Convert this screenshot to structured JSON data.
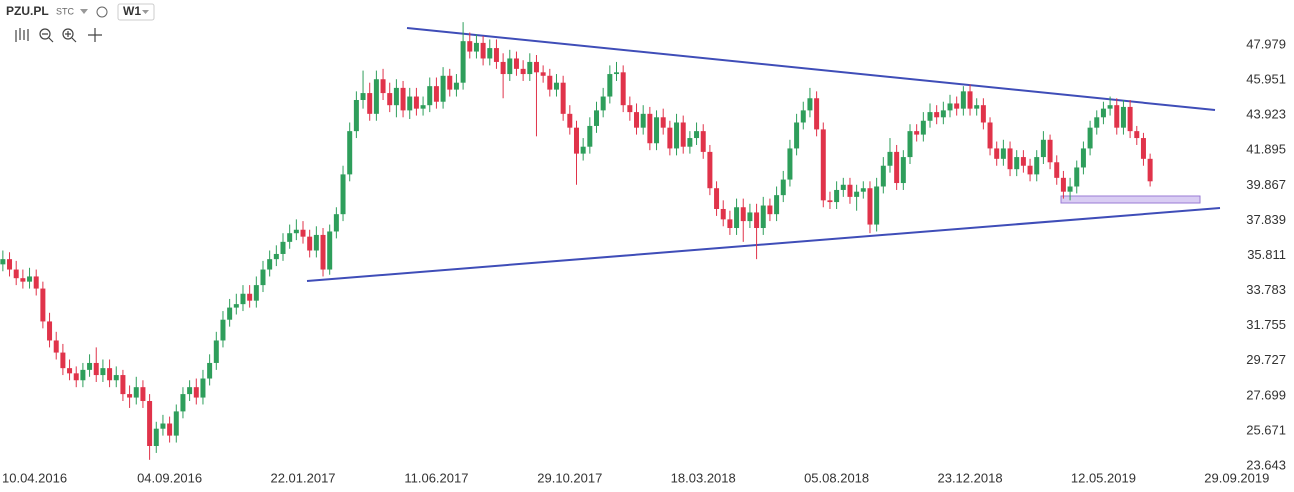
{
  "header": {
    "symbol": "PZU.PL",
    "exchange": "STC",
    "interval": "W1"
  },
  "chart_data": {
    "type": "candlestick",
    "up_color": "#2e9e5b",
    "down_color": "#e0334a",
    "xlim": [
      "2016-03-10",
      "2019-11-28"
    ],
    "ylim": [
      22.95,
      50.58
    ],
    "yticks": [
      23.643,
      25.671,
      27.699,
      29.727,
      31.755,
      33.783,
      35.811,
      37.839,
      39.867,
      41.895,
      43.923,
      45.951,
      47.979
    ],
    "xticks": [
      {
        "value": "2016-04-10",
        "label": "10.04.2016"
      },
      {
        "value": "2016-09-04",
        "label": "04.09.2016"
      },
      {
        "value": "2017-01-22",
        "label": "22.01.2017"
      },
      {
        "value": "2017-06-11",
        "label": "11.06.2017"
      },
      {
        "value": "2017-10-29",
        "label": "29.10.2017"
      },
      {
        "value": "2018-03-18",
        "label": "18.03.2018"
      },
      {
        "value": "2018-08-05",
        "label": "05.08.2018"
      },
      {
        "value": "2018-12-23",
        "label": "23.12.2018"
      },
      {
        "value": "2019-05-12",
        "label": "12.05.2019"
      },
      {
        "value": "2019-09-29",
        "label": "29.09.2019"
      }
    ],
    "x": [
      "2016-03-13",
      "2016-03-20",
      "2016-03-27",
      "2016-04-03",
      "2016-04-10",
      "2016-04-17",
      "2016-04-24",
      "2016-05-01",
      "2016-05-08",
      "2016-05-15",
      "2016-05-22",
      "2016-05-29",
      "2016-06-05",
      "2016-06-12",
      "2016-06-19",
      "2016-06-26",
      "2016-07-03",
      "2016-07-10",
      "2016-07-17",
      "2016-07-24",
      "2016-07-31",
      "2016-08-07",
      "2016-08-14",
      "2016-08-21",
      "2016-08-28",
      "2016-09-04",
      "2016-09-11",
      "2016-09-18",
      "2016-09-25",
      "2016-10-02",
      "2016-10-09",
      "2016-10-16",
      "2016-10-23",
      "2016-10-30",
      "2016-11-06",
      "2016-11-13",
      "2016-11-20",
      "2016-11-27",
      "2016-12-04",
      "2016-12-11",
      "2016-12-18",
      "2016-12-25",
      "2017-01-01",
      "2017-01-08",
      "2017-01-15",
      "2017-01-22",
      "2017-01-29",
      "2017-02-05",
      "2017-02-12",
      "2017-02-19",
      "2017-02-26",
      "2017-03-05",
      "2017-03-12",
      "2017-03-19",
      "2017-03-26",
      "2017-04-02",
      "2017-04-09",
      "2017-04-16",
      "2017-04-23",
      "2017-04-30",
      "2017-05-07",
      "2017-05-14",
      "2017-05-21",
      "2017-05-28",
      "2017-06-04",
      "2017-06-11",
      "2017-06-18",
      "2017-06-25",
      "2017-07-02",
      "2017-07-09",
      "2017-07-16",
      "2017-07-23",
      "2017-07-30",
      "2017-08-06",
      "2017-08-13",
      "2017-08-20",
      "2017-08-27",
      "2017-09-03",
      "2017-09-10",
      "2017-09-17",
      "2017-09-24",
      "2017-10-01",
      "2017-10-08",
      "2017-10-15",
      "2017-10-22",
      "2017-10-29",
      "2017-11-05",
      "2017-11-12",
      "2017-11-19",
      "2017-11-26",
      "2017-12-03",
      "2017-12-10",
      "2017-12-17",
      "2017-12-24",
      "2017-12-31",
      "2018-01-07",
      "2018-01-14",
      "2018-01-21",
      "2018-01-28",
      "2018-02-04",
      "2018-02-11",
      "2018-02-18",
      "2018-02-25",
      "2018-03-04",
      "2018-03-11",
      "2018-03-18",
      "2018-03-25",
      "2018-04-01",
      "2018-04-08",
      "2018-04-15",
      "2018-04-22",
      "2018-04-29",
      "2018-05-06",
      "2018-05-13",
      "2018-05-20",
      "2018-05-27",
      "2018-06-03",
      "2018-06-10",
      "2018-06-17",
      "2018-06-24",
      "2018-07-01",
      "2018-07-08",
      "2018-07-15",
      "2018-07-22",
      "2018-07-29",
      "2018-08-05",
      "2018-08-12",
      "2018-08-19",
      "2018-08-26",
      "2018-09-02",
      "2018-09-09",
      "2018-09-16",
      "2018-09-23",
      "2018-09-30",
      "2018-10-07",
      "2018-10-14",
      "2018-10-21",
      "2018-10-28",
      "2018-11-04",
      "2018-11-11",
      "2018-11-18",
      "2018-11-25",
      "2018-12-02",
      "2018-12-09",
      "2018-12-16",
      "2018-12-23",
      "2018-12-30",
      "2019-01-06",
      "2019-01-13",
      "2019-01-20",
      "2019-01-27",
      "2019-02-03",
      "2019-02-10",
      "2019-02-17",
      "2019-02-24",
      "2019-03-03",
      "2019-03-10",
      "2019-03-17",
      "2019-03-24",
      "2019-03-31",
      "2019-04-07",
      "2019-04-14",
      "2019-04-21",
      "2019-04-28",
      "2019-05-05",
      "2019-05-12",
      "2019-05-19",
      "2019-05-26",
      "2019-06-02",
      "2019-06-09",
      "2019-06-16",
      "2019-06-23",
      "2019-06-30"
    ],
    "open": [
      35.3,
      35.6,
      35.0,
      34.5,
      34.3,
      34.6,
      33.9,
      32.0,
      30.9,
      30.2,
      29.3,
      29.0,
      28.6,
      29.2,
      29.6,
      28.9,
      29.3,
      28.6,
      28.9,
      27.8,
      27.6,
      28.2,
      27.4,
      24.8,
      25.8,
      26.1,
      25.4,
      26.8,
      27.8,
      28.2,
      27.6,
      28.7,
      29.6,
      30.9,
      32.1,
      32.8,
      33.0,
      33.6,
      33.2,
      34.1,
      35.0,
      35.6,
      35.9,
      36.6,
      37.1,
      37.3,
      36.9,
      36.1,
      37.0,
      35.0,
      37.2,
      38.2,
      40.5,
      43.0,
      44.8,
      45.2,
      44.0,
      46.0,
      45.2,
      44.5,
      45.5,
      44.2,
      45.0,
      44.3,
      44.5,
      45.6,
      44.7,
      46.2,
      45.4,
      45.8,
      48.2,
      47.6,
      48.1,
      47.2,
      47.8,
      47.0,
      46.3,
      47.2,
      46.6,
      46.3,
      47.0,
      46.4,
      46.2,
      45.4,
      45.8,
      44.0,
      43.2,
      41.7,
      42.1,
      43.3,
      44.2,
      45.0,
      46.3,
      46.4,
      44.5,
      44.1,
      43.2,
      44.0,
      42.3,
      43.8,
      43.2,
      42.0,
      43.5,
      42.1,
      42.6,
      43.0,
      41.8,
      39.7,
      38.5,
      37.9,
      37.4,
      38.6,
      37.8,
      38.3,
      37.4,
      38.7,
      38.2,
      39.3,
      40.2,
      42.0,
      43.5,
      44.2,
      44.9,
      43.1,
      39.0,
      38.9,
      39.6,
      39.9,
      39.2,
      39.5,
      39.7,
      37.6,
      39.8,
      41.0,
      41.8,
      40.0,
      41.5,
      43.0,
      42.8,
      43.6,
      44.1,
      43.8,
      44.2,
      44.6,
      44.3,
      45.3,
      44.3,
      44.5,
      43.5,
      42.0,
      41.4,
      42.0,
      40.8,
      41.5,
      41.0,
      40.5,
      41.5,
      42.5,
      41.2,
      40.3,
      39.5,
      39.8,
      40.9,
      42.0,
      43.2,
      43.8,
      44.3,
      44.5,
      43.2,
      44.4,
      43.0,
      42.6,
      41.4
    ],
    "high": [
      36.1,
      36.0,
      35.5,
      35.0,
      35.1,
      35.0,
      34.3,
      32.5,
      31.4,
      30.7,
      29.8,
      29.4,
      29.6,
      30.1,
      30.5,
      29.8,
      29.8,
      29.4,
      29.2,
      28.3,
      28.8,
      28.6,
      27.8,
      26.2,
      26.6,
      26.5,
      27.2,
      28.2,
      28.6,
      28.7,
      29.2,
      30.1,
      31.4,
      32.6,
      33.3,
      33.6,
      34.1,
      34.1,
      34.6,
      35.5,
      36.1,
      36.4,
      37.1,
      37.6,
      37.9,
      37.8,
      37.3,
      37.5,
      37.4,
      37.6,
      38.6,
      41.0,
      43.5,
      45.3,
      46.5,
      45.8,
      46.5,
      46.6,
      45.8,
      46.0,
      45.9,
      45.5,
      45.5,
      45.0,
      46.1,
      46.1,
      46.7,
      46.6,
      46.3,
      49.3,
      48.7,
      48.6,
      48.5,
      48.3,
      48.3,
      47.5,
      47.7,
      47.6,
      47.1,
      47.5,
      47.4,
      46.8,
      46.6,
      46.3,
      46.2,
      44.5,
      43.6,
      42.6,
      43.8,
      44.7,
      45.5,
      46.8,
      47.0,
      46.8,
      45.0,
      44.6,
      44.5,
      44.4,
      44.2,
      44.3,
      43.6,
      44.0,
      43.9,
      43.0,
      43.5,
      43.4,
      42.2,
      40.1,
      39.0,
      38.4,
      39.1,
      39.1,
      38.8,
      38.8,
      39.2,
      39.1,
      39.8,
      40.7,
      42.5,
      44.0,
      44.7,
      45.5,
      45.3,
      43.5,
      39.5,
      40.1,
      40.3,
      40.3,
      39.9,
      40.1,
      40.1,
      40.3,
      41.5,
      42.6,
      42.2,
      41.9,
      43.4,
      43.4,
      44.1,
      44.6,
      44.5,
      44.7,
      45.1,
      45.0,
      45.6,
      45.7,
      44.9,
      44.9,
      43.8,
      42.4,
      42.5,
      42.4,
      41.9,
      41.9,
      41.4,
      41.9,
      43.0,
      42.8,
      41.6,
      40.7,
      40.3,
      41.3,
      42.4,
      43.6,
      44.2,
      44.7,
      45.0,
      44.9,
      44.8,
      44.8,
      43.3,
      42.9,
      41.7
    ],
    "low": [
      34.9,
      34.6,
      34.1,
      33.9,
      33.9,
      33.5,
      31.6,
      30.5,
      29.8,
      28.9,
      28.6,
      28.2,
      28.2,
      28.8,
      28.5,
      28.5,
      28.2,
      28.2,
      27.4,
      27.0,
      27.2,
      27.0,
      24.0,
      24.4,
      25.4,
      25.0,
      25.0,
      26.4,
      27.4,
      27.2,
      27.2,
      28.3,
      29.2,
      30.5,
      31.7,
      32.4,
      32.6,
      32.8,
      32.8,
      33.7,
      34.6,
      35.2,
      35.5,
      36.2,
      36.7,
      36.5,
      35.7,
      35.7,
      34.6,
      34.7,
      36.8,
      37.8,
      40.1,
      42.6,
      44.3,
      43.6,
      43.6,
      44.8,
      44.1,
      43.8,
      43.8,
      43.7,
      43.9,
      43.9,
      44.1,
      44.3,
      44.3,
      45.0,
      45.0,
      45.4,
      47.2,
      47.2,
      46.8,
      46.8,
      46.6,
      44.9,
      45.9,
      46.2,
      45.9,
      45.9,
      42.7,
      45.8,
      45.0,
      45.0,
      43.6,
      42.8,
      39.9,
      41.3,
      41.7,
      42.9,
      43.8,
      44.6,
      45.9,
      44.1,
      43.6,
      42.8,
      42.8,
      41.9,
      41.9,
      42.8,
      41.6,
      41.6,
      41.7,
      41.7,
      42.2,
      41.4,
      39.3,
      38.1,
      37.5,
      37.0,
      37.0,
      36.6,
      37.4,
      35.6,
      37.0,
      37.8,
      37.8,
      38.9,
      39.8,
      41.6,
      43.1,
      43.8,
      42.7,
      38.6,
      38.5,
      38.5,
      39.2,
      38.8,
      38.4,
      39.1,
      37.1,
      37.2,
      39.4,
      40.6,
      39.6,
      39.6,
      41.1,
      42.4,
      42.4,
      43.2,
      43.4,
      43.4,
      43.8,
      43.9,
      43.9,
      43.9,
      43.9,
      43.1,
      41.6,
      41.0,
      41.0,
      40.4,
      40.4,
      40.6,
      40.1,
      40.1,
      41.1,
      40.8,
      39.9,
      39.1,
      39.0,
      39.4,
      40.5,
      41.6,
      42.8,
      43.4,
      43.9,
      42.8,
      42.8,
      42.6,
      42.2,
      41.0,
      39.8
    ],
    "close": [
      35.6,
      35.0,
      34.5,
      34.3,
      34.6,
      33.9,
      32.0,
      30.9,
      30.2,
      29.3,
      29.0,
      28.6,
      29.2,
      29.6,
      28.9,
      29.3,
      28.6,
      28.9,
      27.8,
      27.6,
      28.2,
      27.4,
      24.8,
      25.8,
      26.1,
      25.4,
      26.8,
      27.8,
      28.2,
      27.6,
      28.7,
      29.6,
      30.9,
      32.1,
      32.8,
      33.0,
      33.6,
      33.2,
      34.1,
      35.0,
      35.6,
      35.9,
      36.6,
      37.1,
      37.3,
      36.9,
      36.1,
      37.0,
      35.0,
      37.2,
      38.2,
      40.5,
      43.0,
      44.8,
      45.2,
      44.0,
      46.0,
      45.2,
      44.5,
      45.5,
      44.2,
      45.0,
      44.3,
      44.5,
      45.6,
      44.7,
      46.2,
      45.4,
      45.8,
      48.2,
      47.6,
      48.1,
      47.2,
      47.8,
      47.0,
      46.3,
      47.2,
      46.6,
      46.3,
      47.0,
      46.4,
      46.2,
      45.4,
      45.8,
      44.0,
      43.2,
      41.7,
      42.1,
      43.3,
      44.2,
      45.0,
      46.3,
      46.4,
      44.5,
      44.1,
      43.2,
      44.0,
      42.3,
      43.8,
      43.2,
      42.0,
      43.5,
      42.1,
      42.6,
      43.0,
      41.8,
      39.7,
      38.5,
      37.9,
      37.4,
      38.6,
      37.8,
      38.3,
      37.4,
      38.7,
      38.2,
      39.3,
      40.2,
      42.0,
      43.5,
      44.2,
      44.9,
      43.1,
      39.0,
      38.9,
      39.6,
      39.9,
      39.2,
      39.5,
      39.7,
      37.6,
      39.8,
      41.0,
      41.8,
      40.0,
      41.5,
      43.0,
      42.8,
      43.6,
      44.1,
      43.8,
      44.2,
      44.6,
      44.3,
      45.3,
      44.3,
      44.5,
      43.5,
      42.0,
      41.4,
      42.0,
      40.8,
      41.5,
      41.0,
      40.5,
      41.5,
      42.5,
      41.2,
      40.3,
      39.5,
      39.8,
      40.9,
      42.0,
      43.2,
      43.8,
      44.3,
      44.5,
      43.2,
      44.4,
      43.0,
      42.6,
      41.4,
      40.1
    ]
  }
}
